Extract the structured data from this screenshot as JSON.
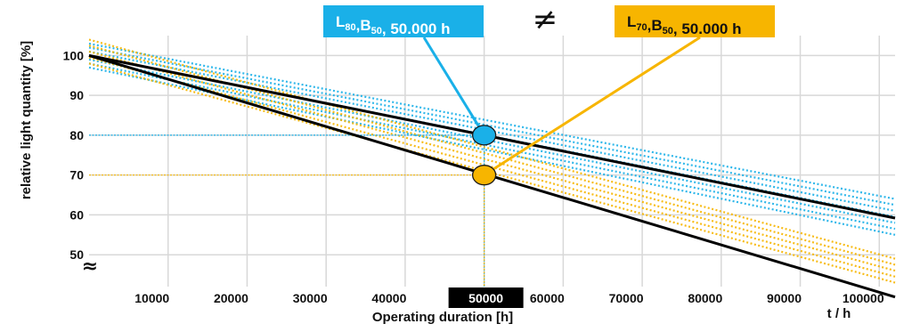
{
  "chart_data": {
    "type": "line",
    "title": "",
    "xlabel": "Operating duration [h]",
    "xunit_label": "t / h",
    "ylabel": "relative light quantity [%]",
    "xlim": [
      0,
      102000
    ],
    "ylim": [
      42,
      105
    ],
    "x_ticks": [
      "10000",
      "20000",
      "30000",
      "40000",
      "50000",
      "60000",
      "70000",
      "80000",
      "90000",
      "100000"
    ],
    "highlighted_x_tick": "50000",
    "y_ticks": [
      "100",
      "90",
      "80",
      "70",
      "60",
      "50"
    ],
    "axis_break_symbol": "≈",
    "grid": true,
    "colors": {
      "blue": "#1ab0e8",
      "yellow": "#f7b500",
      "main_line": "#000000",
      "grid": "#d8d8d8"
    },
    "series": [
      {
        "x": [
          0,
          102000
        ],
        "y": [
          100,
          59.2
        ]
      },
      {
        "x": [
          0,
          102000
        ],
        "y": [
          100,
          39.4
        ]
      }
    ],
    "scatter_bands": [
      {
        "color": "blue",
        "start_y": [
          97,
          98,
          99,
          100,
          101,
          102,
          103
        ],
        "end_y": [
          55,
          56.5,
          58,
          59.5,
          61,
          62.5,
          64
        ]
      },
      {
        "color": "yellow",
        "start_y": [
          98,
          99.5,
          101,
          102.5,
          104
        ],
        "end_y": [
          43,
          44.5,
          46,
          47.5,
          49
        ]
      }
    ],
    "markers": [
      {
        "x": 50000,
        "y": 80,
        "color": "blue",
        "label": "L80,B50, 50.000 h"
      },
      {
        "x": 50000,
        "y": 70,
        "color": "yellow",
        "label": "L70,B50, 50.000 h"
      }
    ],
    "callouts": [
      {
        "color": "blue",
        "L": "L",
        "L_sub": "80",
        "B": "B",
        "B_sub": "50",
        "rest": ", 50.000 h"
      },
      {
        "color": "yellow",
        "L": "L",
        "L_sub": "70",
        "B": "B",
        "B_sub": "50",
        "rest": ", 50.000 h"
      }
    ],
    "comparison_symbol": "≠"
  }
}
